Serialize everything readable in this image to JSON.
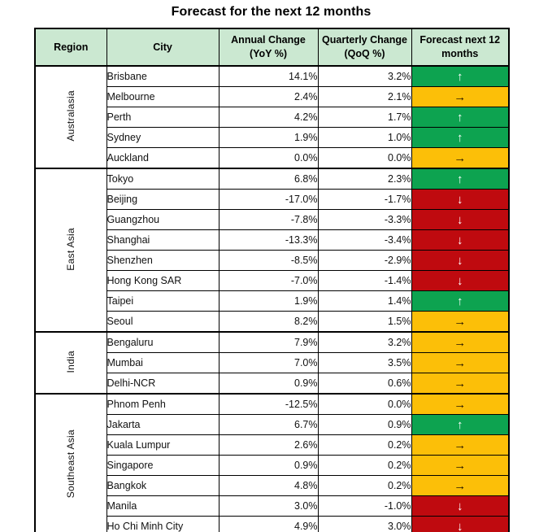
{
  "title": "Forecast for the next 12 months",
  "colors": {
    "header_fill": "#cbe8d1",
    "up": "#0da350",
    "right": "#fcbf08",
    "down": "#bf0a0f",
    "border": "#000000"
  },
  "forecast_icons": {
    "up": "↑",
    "right": "→",
    "down": "↓"
  },
  "table": {
    "headers": [
      {
        "label": "Region",
        "sub": ""
      },
      {
        "label": "City",
        "sub": ""
      },
      {
        "label": "Annual Change",
        "sub": "(YoY %)"
      },
      {
        "label": "Quarterly Change",
        "sub": "(QoQ %)"
      },
      {
        "label": "Forecast next 12",
        "sub": "months"
      }
    ],
    "regions": [
      {
        "name": "Australasia",
        "rows": [
          {
            "city": "Brisbane",
            "annual": "14.1%",
            "quarterly": "3.2%",
            "forecast": "up"
          },
          {
            "city": "Melbourne",
            "annual": "2.4%",
            "quarterly": "2.1%",
            "forecast": "right"
          },
          {
            "city": "Perth",
            "annual": "4.2%",
            "quarterly": "1.7%",
            "forecast": "up"
          },
          {
            "city": "Sydney",
            "annual": "1.9%",
            "quarterly": "1.0%",
            "forecast": "up"
          },
          {
            "city": "Auckland",
            "annual": "0.0%",
            "quarterly": "0.0%",
            "forecast": "right"
          }
        ]
      },
      {
        "name": "East Asia",
        "rows": [
          {
            "city": "Tokyo",
            "annual": "6.8%",
            "quarterly": "2.3%",
            "forecast": "up"
          },
          {
            "city": "Beijing",
            "annual": "-17.0%",
            "quarterly": "-1.7%",
            "forecast": "down"
          },
          {
            "city": "Guangzhou",
            "annual": "-7.8%",
            "quarterly": "-3.3%",
            "forecast": "down"
          },
          {
            "city": "Shanghai",
            "annual": "-13.3%",
            "quarterly": "-3.4%",
            "forecast": "down"
          },
          {
            "city": "Shenzhen",
            "annual": "-8.5%",
            "quarterly": "-2.9%",
            "forecast": "down"
          },
          {
            "city": "Hong Kong SAR",
            "annual": "-7.0%",
            "quarterly": "-1.4%",
            "forecast": "down"
          },
          {
            "city": "Taipei",
            "annual": "1.9%",
            "quarterly": "1.4%",
            "forecast": "up"
          },
          {
            "city": "Seoul",
            "annual": "8.2%",
            "quarterly": "1.5%",
            "forecast": "right"
          }
        ]
      },
      {
        "name": "India",
        "rows": [
          {
            "city": "Bengaluru",
            "annual": "7.9%",
            "quarterly": "3.2%",
            "forecast": "right"
          },
          {
            "city": "Mumbai",
            "annual": "7.0%",
            "quarterly": "3.5%",
            "forecast": "right"
          },
          {
            "city": "Delhi-NCR",
            "annual": "0.9%",
            "quarterly": "0.6%",
            "forecast": "right"
          }
        ]
      },
      {
        "name": "Southeast Asia",
        "rows": [
          {
            "city": "Phnom Penh",
            "annual": "-12.5%",
            "quarterly": "0.0%",
            "forecast": "right"
          },
          {
            "city": "Jakarta",
            "annual": "6.7%",
            "quarterly": "0.9%",
            "forecast": "up"
          },
          {
            "city": "Kuala Lumpur",
            "annual": "2.6%",
            "quarterly": "0.2%",
            "forecast": "right"
          },
          {
            "city": "Singapore",
            "annual": "0.9%",
            "quarterly": "0.2%",
            "forecast": "right"
          },
          {
            "city": "Bangkok",
            "annual": "4.8%",
            "quarterly": "0.2%",
            "forecast": "right"
          },
          {
            "city": "Manila",
            "annual": "3.0%",
            "quarterly": "-1.0%",
            "forecast": "down"
          },
          {
            "city": "Ho Chi Minh City",
            "annual": "4.9%",
            "quarterly": "3.0%",
            "forecast": "down"
          }
        ]
      }
    ]
  },
  "chart_data": {
    "type": "table",
    "title": "Forecast for the next 12 months",
    "columns": [
      "Region",
      "City",
      "Annual Change (YoY %)",
      "Quarterly Change (QoQ %)",
      "Forecast next 12 months"
    ],
    "rows": [
      [
        "Australasia",
        "Brisbane",
        14.1,
        3.2,
        "up"
      ],
      [
        "Australasia",
        "Melbourne",
        2.4,
        2.1,
        "sideways"
      ],
      [
        "Australasia",
        "Perth",
        4.2,
        1.7,
        "up"
      ],
      [
        "Australasia",
        "Sydney",
        1.9,
        1.0,
        "up"
      ],
      [
        "Australasia",
        "Auckland",
        0.0,
        0.0,
        "sideways"
      ],
      [
        "East Asia",
        "Tokyo",
        6.8,
        2.3,
        "up"
      ],
      [
        "East Asia",
        "Beijing",
        -17.0,
        -1.7,
        "down"
      ],
      [
        "East Asia",
        "Guangzhou",
        -7.8,
        -3.3,
        "down"
      ],
      [
        "East Asia",
        "Shanghai",
        -13.3,
        -3.4,
        "down"
      ],
      [
        "East Asia",
        "Shenzhen",
        -8.5,
        -2.9,
        "down"
      ],
      [
        "East Asia",
        "Hong Kong SAR",
        -7.0,
        -1.4,
        "down"
      ],
      [
        "East Asia",
        "Taipei",
        1.9,
        1.4,
        "up"
      ],
      [
        "East Asia",
        "Seoul",
        8.2,
        1.5,
        "sideways"
      ],
      [
        "India",
        "Bengaluru",
        7.9,
        3.2,
        "sideways"
      ],
      [
        "India",
        "Mumbai",
        7.0,
        3.5,
        "sideways"
      ],
      [
        "India",
        "Delhi-NCR",
        0.9,
        0.6,
        "sideways"
      ],
      [
        "Southeast Asia",
        "Phnom Penh",
        -12.5,
        0.0,
        "sideways"
      ],
      [
        "Southeast Asia",
        "Jakarta",
        6.7,
        0.9,
        "up"
      ],
      [
        "Southeast Asia",
        "Kuala Lumpur",
        2.6,
        0.2,
        "sideways"
      ],
      [
        "Southeast Asia",
        "Singapore",
        0.9,
        0.2,
        "sideways"
      ],
      [
        "Southeast Asia",
        "Bangkok",
        4.8,
        0.2,
        "sideways"
      ],
      [
        "Southeast Asia",
        "Manila",
        3.0,
        -1.0,
        "down"
      ],
      [
        "Southeast Asia",
        "Ho Chi Minh City",
        4.9,
        3.0,
        "down"
      ]
    ]
  }
}
